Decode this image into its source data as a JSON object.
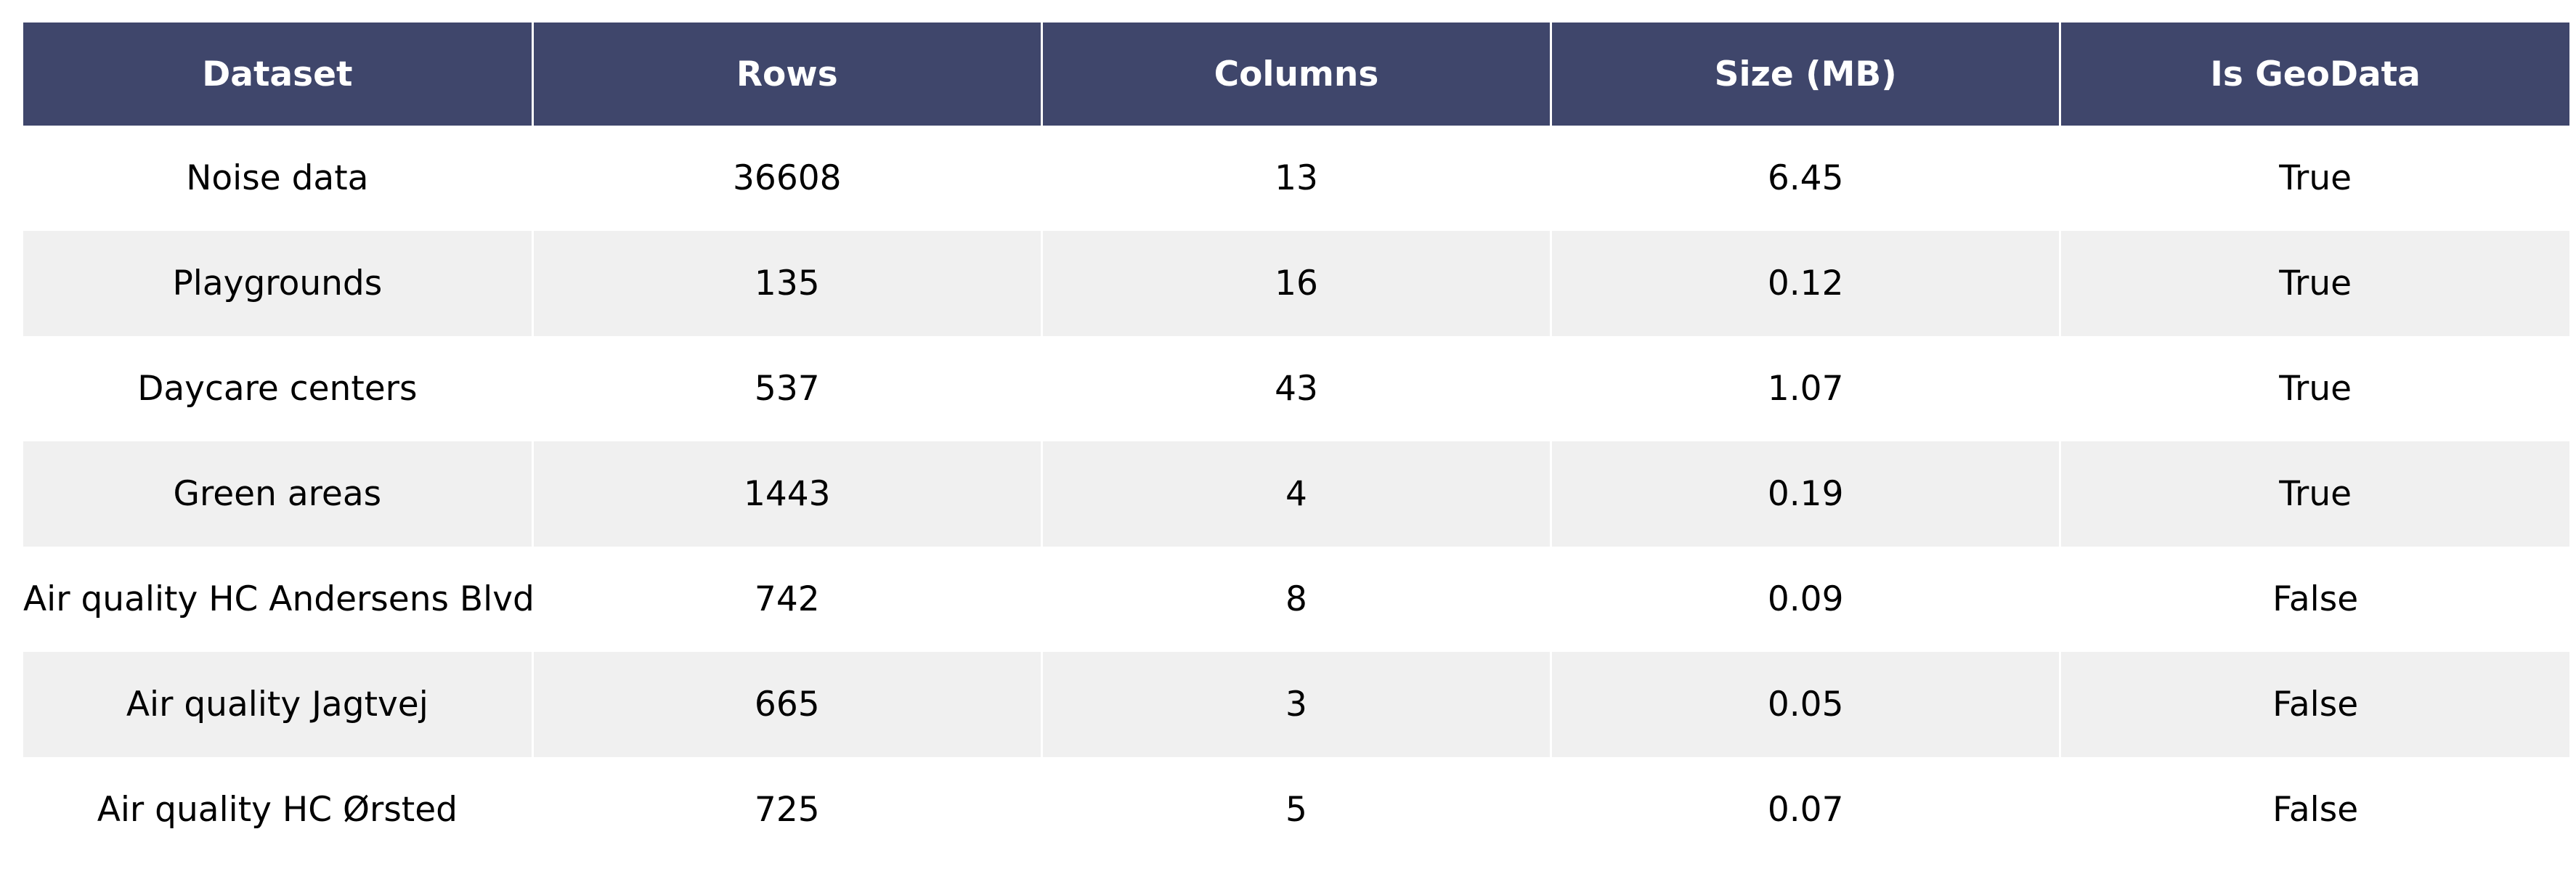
{
  "chart_data": {
    "type": "table",
    "header_color": "#3f466b",
    "stripe_color": "#f0f0f0",
    "columns": [
      "Dataset",
      "Rows",
      "Columns",
      "Size (MB)",
      "Is GeoData"
    ],
    "rows": [
      [
        "Noise data",
        "36608",
        "13",
        "6.45",
        "True"
      ],
      [
        "Playgrounds",
        "135",
        "16",
        "0.12",
        "True"
      ],
      [
        "Daycare centers",
        "537",
        "43",
        "1.07",
        "True"
      ],
      [
        "Green areas",
        "1443",
        "4",
        "0.19",
        "True"
      ],
      [
        "Air quality HC Andersens Blvd",
        "742",
        "8",
        "0.09",
        "False"
      ],
      [
        "Air quality Jagtvej",
        "665",
        "3",
        "0.05",
        "False"
      ],
      [
        "Air quality HC Ørsted",
        "725",
        "5",
        "0.07",
        "False"
      ]
    ]
  }
}
